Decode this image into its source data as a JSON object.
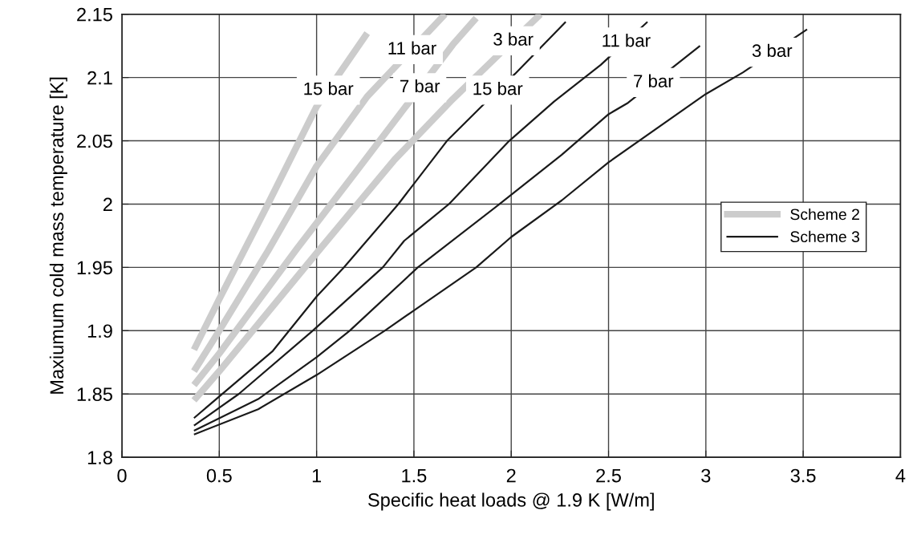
{
  "chart_data": {
    "type": "line",
    "xlabel": "Specific heat loads @ 1.9 K [W/m]",
    "ylabel": "Maxiumum cold mass temperature [K]",
    "xlim": [
      0,
      4
    ],
    "ylim": [
      1.8,
      2.15
    ],
    "xticks": [
      0,
      0.5,
      1,
      1.5,
      2,
      2.5,
      3,
      3.5,
      4
    ],
    "yticks": [
      1.8,
      1.85,
      1.9,
      1.95,
      2,
      2.05,
      2.1,
      2.15
    ],
    "grid": true,
    "legend": "right",
    "marker": "none",
    "line_style": "solid",
    "series": [
      {
        "name": "Scheme 2",
        "color": "#cccccc",
        "x": [
          0.37,
          0.5,
          0.75,
          1.0,
          1.26
        ],
        "values": [
          1.885,
          1.925,
          2.0,
          2.077,
          2.135
        ]
      },
      {
        "color": "#cccccc",
        "x": [
          0.37,
          0.5,
          0.75,
          1.0,
          1.26,
          1.66
        ],
        "values": [
          1.868,
          1.9,
          1.963,
          2.03,
          2.085,
          2.15
        ]
      },
      {
        "color": "#cccccc",
        "x": [
          0.37,
          0.5,
          0.9,
          1.2,
          1.7,
          1.82
        ],
        "values": [
          1.857,
          1.882,
          1.965,
          2.025,
          2.126,
          2.147
        ]
      },
      {
        "color": "#cccccc",
        "x": [
          0.37,
          0.5,
          1.02,
          1.4,
          1.7,
          2.15
        ],
        "values": [
          1.845,
          1.868,
          1.965,
          2.035,
          2.083,
          2.15
        ]
      },
      {
        "name": "Scheme 3",
        "color": "#1a1a1a",
        "x": [
          0.37,
          0.775,
          1.0,
          1.14,
          1.42,
          1.67,
          1.84,
          2.02,
          2.28
        ],
        "values": [
          1.831,
          1.884,
          1.927,
          1.95,
          2.0,
          2.05,
          2.076,
          2.103,
          2.144
        ]
      },
      {
        "color": "#1a1a1a",
        "x": [
          0.37,
          0.6,
          0.98,
          1.34,
          1.45,
          1.68,
          1.99,
          2.22,
          2.46,
          2.7
        ],
        "values": [
          1.825,
          1.85,
          1.9,
          1.95,
          1.971,
          2.0,
          2.05,
          2.081,
          2.11,
          2.144
        ]
      },
      {
        "color": "#1a1a1a",
        "x": [
          0.37,
          0.7,
          1.0,
          1.17,
          1.52,
          1.94,
          2.26,
          2.5,
          2.6,
          2.97
        ],
        "values": [
          1.821,
          1.846,
          1.879,
          1.9,
          1.95,
          2.0,
          2.039,
          2.071,
          2.08,
          2.125
        ]
      },
      {
        "color": "#1a1a1a",
        "x": [
          0.37,
          0.7,
          1.0,
          1.35,
          1.5,
          1.82,
          2.0,
          2.26,
          2.5,
          3.0,
          3.19,
          3.52
        ],
        "values": [
          1.818,
          1.838,
          1.865,
          1.9,
          1.916,
          1.95,
          1.974,
          2.003,
          2.033,
          2.087,
          2.104,
          2.138
        ]
      }
    ],
    "annotations": [
      {
        "text": "15 bar",
        "x": 1.06,
        "y": 2.09
      },
      {
        "text": "11 bar",
        "x": 1.49,
        "y": 2.122
      },
      {
        "text": "7 bar",
        "x": 1.53,
        "y": 2.092
      },
      {
        "text": "3 bar",
        "x": 2.01,
        "y": 2.129
      },
      {
        "text": "15 bar",
        "x": 1.93,
        "y": 2.09
      },
      {
        "text": "11 bar",
        "x": 2.59,
        "y": 2.128
      },
      {
        "text": "7 bar",
        "x": 2.73,
        "y": 2.096
      },
      {
        "text": "3 bar",
        "x": 3.34,
        "y": 2.12
      }
    ]
  }
}
